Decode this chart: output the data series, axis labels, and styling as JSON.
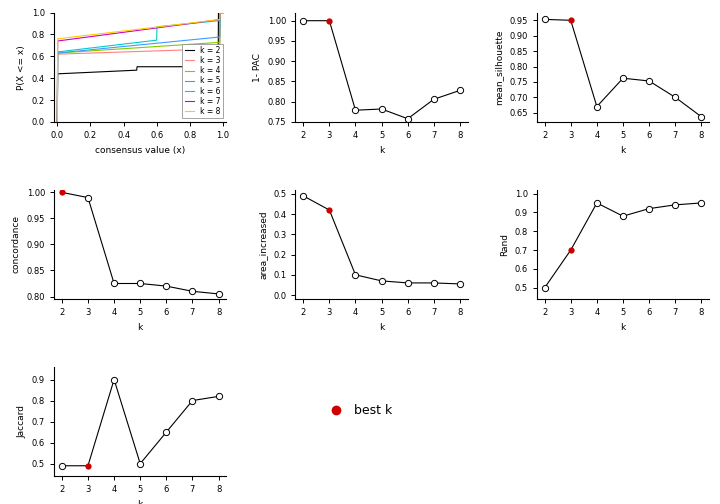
{
  "k_values": [
    2,
    3,
    4,
    5,
    6,
    7,
    8
  ],
  "pac_1minus": [
    1.0,
    1.0,
    0.779,
    0.782,
    0.758,
    0.806,
    0.828
  ],
  "mean_silhouette": [
    0.953,
    0.95,
    0.67,
    0.762,
    0.753,
    0.7,
    0.637
  ],
  "concordance": [
    1.0,
    0.99,
    0.825,
    0.825,
    0.82,
    0.81,
    0.805
  ],
  "area_increased": [
    0.49,
    0.42,
    0.1,
    0.07,
    0.06,
    0.06,
    0.055
  ],
  "rand": [
    0.5,
    0.7,
    0.95,
    0.88,
    0.92,
    0.94,
    0.95
  ],
  "jaccard": [
    0.49,
    0.49,
    0.9,
    0.5,
    0.65,
    0.8,
    0.82
  ],
  "best_k_pac": 3,
  "best_k_sil": 3,
  "best_k_conc": 2,
  "best_k_area": 3,
  "best_k_rand": 3,
  "best_k_jacc": 3,
  "cdf_colors": [
    "black",
    "#ff8080",
    "#80cc00",
    "#4499ff",
    "#00cccc",
    "#cc00cc",
    "#ffcc00"
  ],
  "cdf_labels": [
    "k = 2",
    "k = 3",
    "k = 4",
    "k = 5",
    "k = 6",
    "k = 7",
    "k = 8"
  ],
  "best_k_color": "#cc0000",
  "axis_color": "#888888",
  "font_size_label": 6.5,
  "font_size_tick": 6,
  "font_size_legend": 5.5
}
